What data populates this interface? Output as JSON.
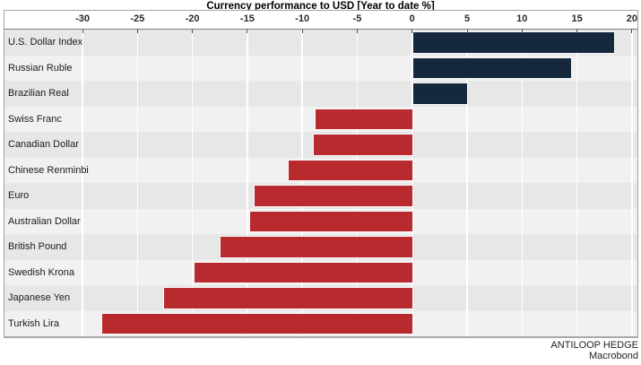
{
  "chart_data": {
    "type": "bar",
    "orientation": "horizontal",
    "title": "Currency performance to USD [Year to date %]",
    "categories": [
      "U.S. Dollar Index",
      "Russian Ruble",
      "Brazilian Real",
      "Swiss Franc",
      "Canadian Dollar",
      "Chinese Renminbi",
      "Euro",
      "Australian Dollar",
      "British Pound",
      "Swedish Krona",
      "Japanese Yen",
      "Turkish Lira"
    ],
    "values": [
      18.4,
      14.5,
      5.0,
      -8.9,
      -9.0,
      -11.3,
      -14.4,
      -14.8,
      -17.5,
      -19.9,
      -22.7,
      -28.3
    ],
    "xlabel": "",
    "ylabel": "",
    "xlim": [
      -37.1,
      20.5
    ],
    "xticks": [
      -30,
      -25,
      -20,
      -15,
      -10,
      -5,
      0,
      5,
      10,
      15,
      20
    ],
    "axis_position": "top",
    "grid": "vertical-white-on-gray-bands",
    "legend": "none",
    "colors": {
      "positive_bar": "#15283e",
      "negative_bar": "#b92a2e",
      "band_odd": "#e7e7e7",
      "band_even": "#f1f1f1",
      "gridline": "#ffffff"
    }
  },
  "footer": {
    "line1": "ANTILOOP HEDGE",
    "line2": "Macrobond"
  }
}
